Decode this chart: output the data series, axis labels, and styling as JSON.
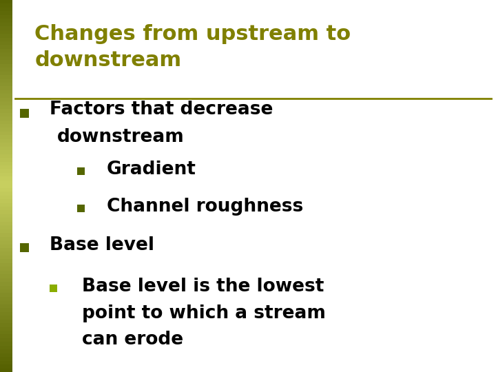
{
  "title_line1": "Changes from upstream to",
  "title_line2": "downstream",
  "title_color": "#808000",
  "title_fontsize": 22,
  "divider_color": "#808000",
  "bg_color": "#ffffff",
  "left_bar_dark": "#556000",
  "left_bar_light": "#c8d060",
  "bullet1_text_line1": "Factors that decrease",
  "bullet1_text_line2": "downstream",
  "sub_bullet1": "Gradient",
  "sub_bullet2": "Channel roughness",
  "bullet2_text": "Base level",
  "sub_bullet3_line1": "Base level is the lowest",
  "sub_bullet3_line2": "point to which a stream",
  "sub_bullet3_line3": "can erode",
  "body_fontsize": 19,
  "sub_fontsize": 19,
  "body_color": "#000000",
  "bullet_square_color": "#556600",
  "sub_square_color": "#556600",
  "sub2_square_color": "#8aad00"
}
